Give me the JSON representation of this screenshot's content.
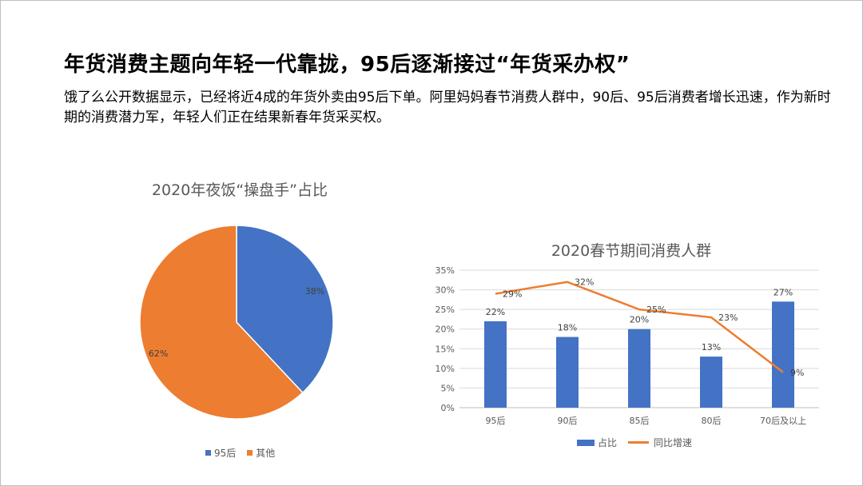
{
  "title": "年货消费主题向年轻一代靠拢，95后逐渐接过“年货采办权”",
  "description": "饿了么公开数据显示，已经将近4成的年货外卖由95后下单。阿里妈妈春节消费人群中，90后、95后消费者增长迅速，作为新时期的消费潜力军，年轻人们正在结果新春年货采买权。",
  "chart_data": [
    {
      "type": "pie",
      "title": "2020年夜饭“操盘手”占比",
      "categories": [
        "95后",
        "其他"
      ],
      "values": [
        38,
        62
      ],
      "labels": [
        "38%",
        "62%"
      ],
      "colors": [
        "#4472C4",
        "#ED7D31"
      ],
      "legend_position": "bottom"
    },
    {
      "type": "bar",
      "title": "2020春节期间消费人群",
      "categories": [
        "95后",
        "90后",
        "85后",
        "80后",
        "70后及以上"
      ],
      "series": [
        {
          "name": "占比",
          "type": "bar",
          "values": [
            22,
            18,
            20,
            13,
            27
          ],
          "labels": [
            "22%",
            "18%",
            "20%",
            "13%",
            "27%"
          ],
          "color": "#4472C4"
        },
        {
          "name": "同比增速",
          "type": "line",
          "values": [
            29,
            32,
            25,
            23,
            9
          ],
          "labels": [
            "29%",
            "32%",
            "25%",
            "23%",
            "9%"
          ],
          "color": "#ED7D31"
        }
      ],
      "yticks": [
        "0%",
        "5%",
        "10%",
        "15%",
        "20%",
        "25%",
        "30%",
        "35%"
      ],
      "ylim": [
        0,
        35
      ],
      "grid": true,
      "legend_position": "bottom"
    }
  ]
}
